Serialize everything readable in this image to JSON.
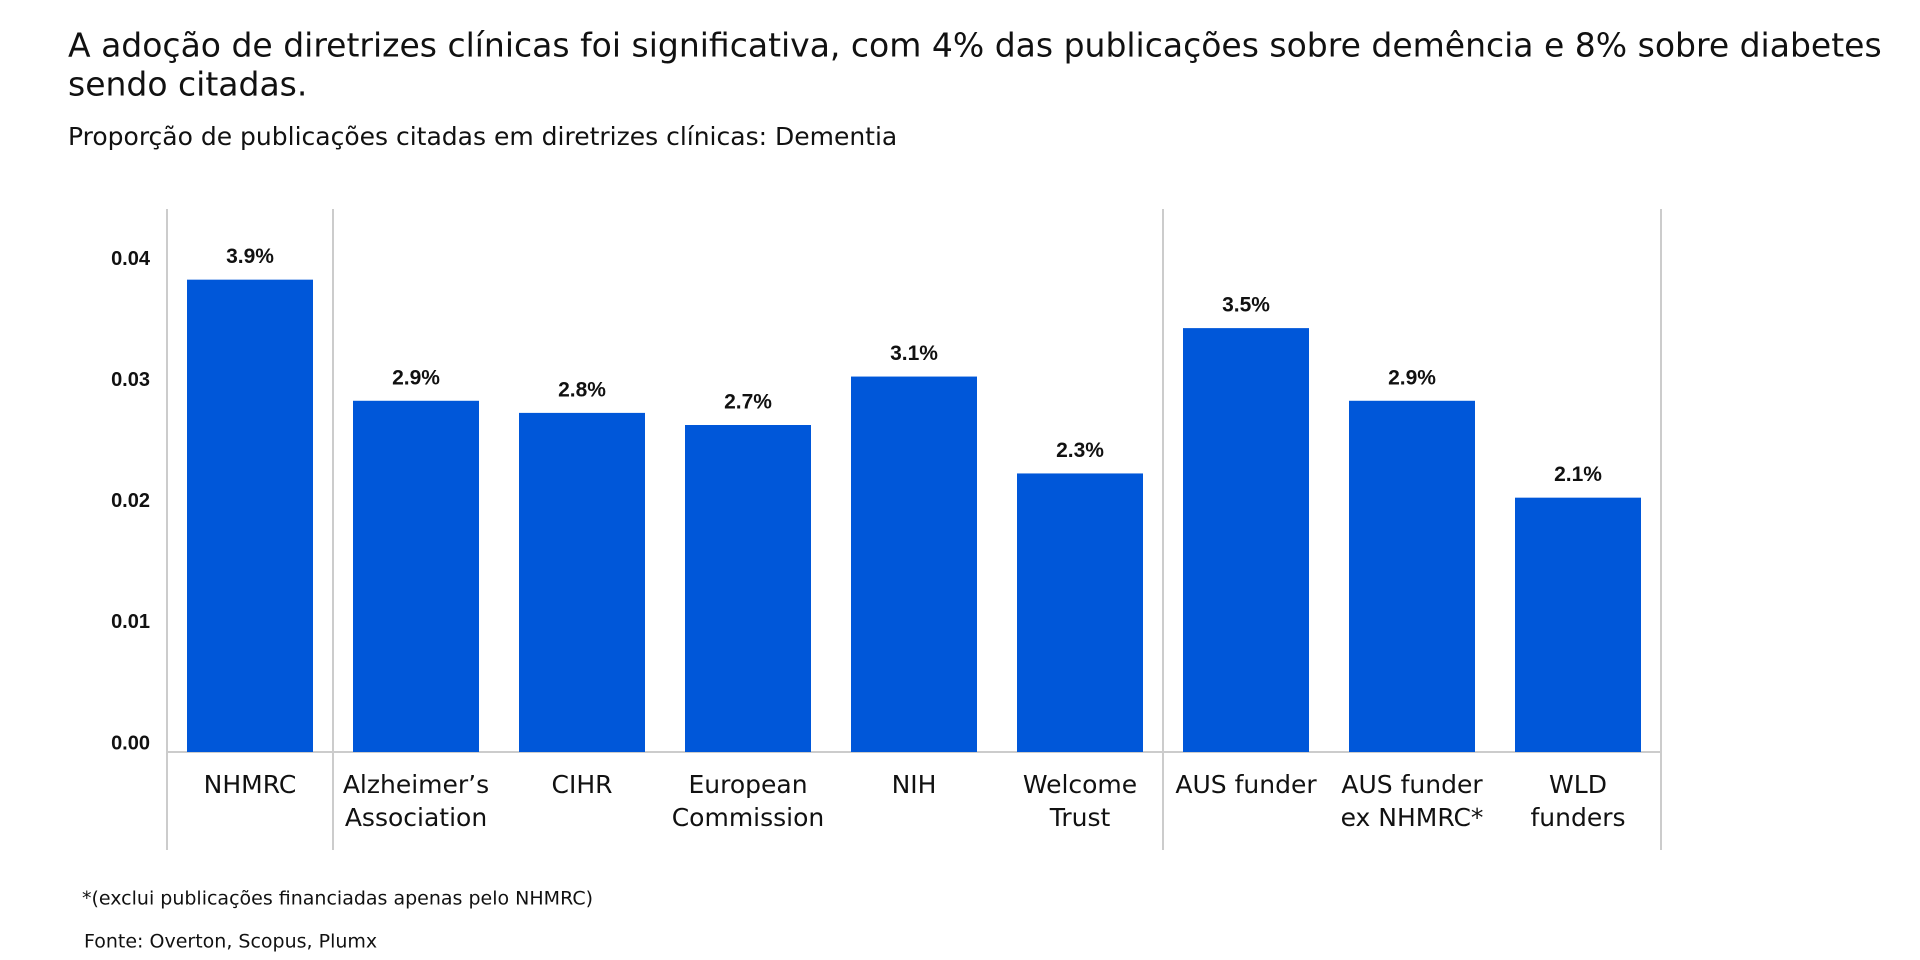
{
  "chart_data": {
    "type": "bar",
    "title": "A adoção de diretrizes clínicas foi significativa, com 4% das publicações sobre demência e 8% sobre diabetes",
    "title_line2": "sendo citadas.",
    "subtitle": "Proporção de publicações citadas em diretrizes clínicas: Dementia",
    "categories": [
      [
        "NHMRC"
      ],
      [
        "Alzheimer’s",
        "Association"
      ],
      [
        "CIHR"
      ],
      [
        "European",
        "Commission"
      ],
      [
        "NIH"
      ],
      [
        "Welcome",
        "Trust"
      ],
      [
        "AUS funder"
      ],
      [
        "AUS funder",
        "ex NHMRC*"
      ],
      [
        "WLD",
        "funders"
      ]
    ],
    "values": [
      0.039,
      0.029,
      0.028,
      0.027,
      0.031,
      0.023,
      0.035,
      0.029,
      0.021
    ],
    "value_labels": [
      "3.9%",
      "2.9%",
      "2.8%",
      "2.7%",
      "3.1%",
      "2.3%",
      "3.5%",
      "2.9%",
      "2.1%"
    ],
    "color": "#0057d9",
    "ylim": [
      0,
      0.045
    ],
    "yticks": [
      {
        "value": 0,
        "label": "0.00"
      },
      {
        "value": 0.01,
        "label": "0.01"
      },
      {
        "value": 0.02,
        "label": "0.02"
      },
      {
        "value": 0.03,
        "label": "0.03"
      },
      {
        "value": 0.04,
        "label": "0.04"
      }
    ],
    "grid": false,
    "footnote": "*(exclui publicações financiadas apenas pelo NHMRC)",
    "source": "Fonte: Overton, Scopus, Plumx"
  }
}
